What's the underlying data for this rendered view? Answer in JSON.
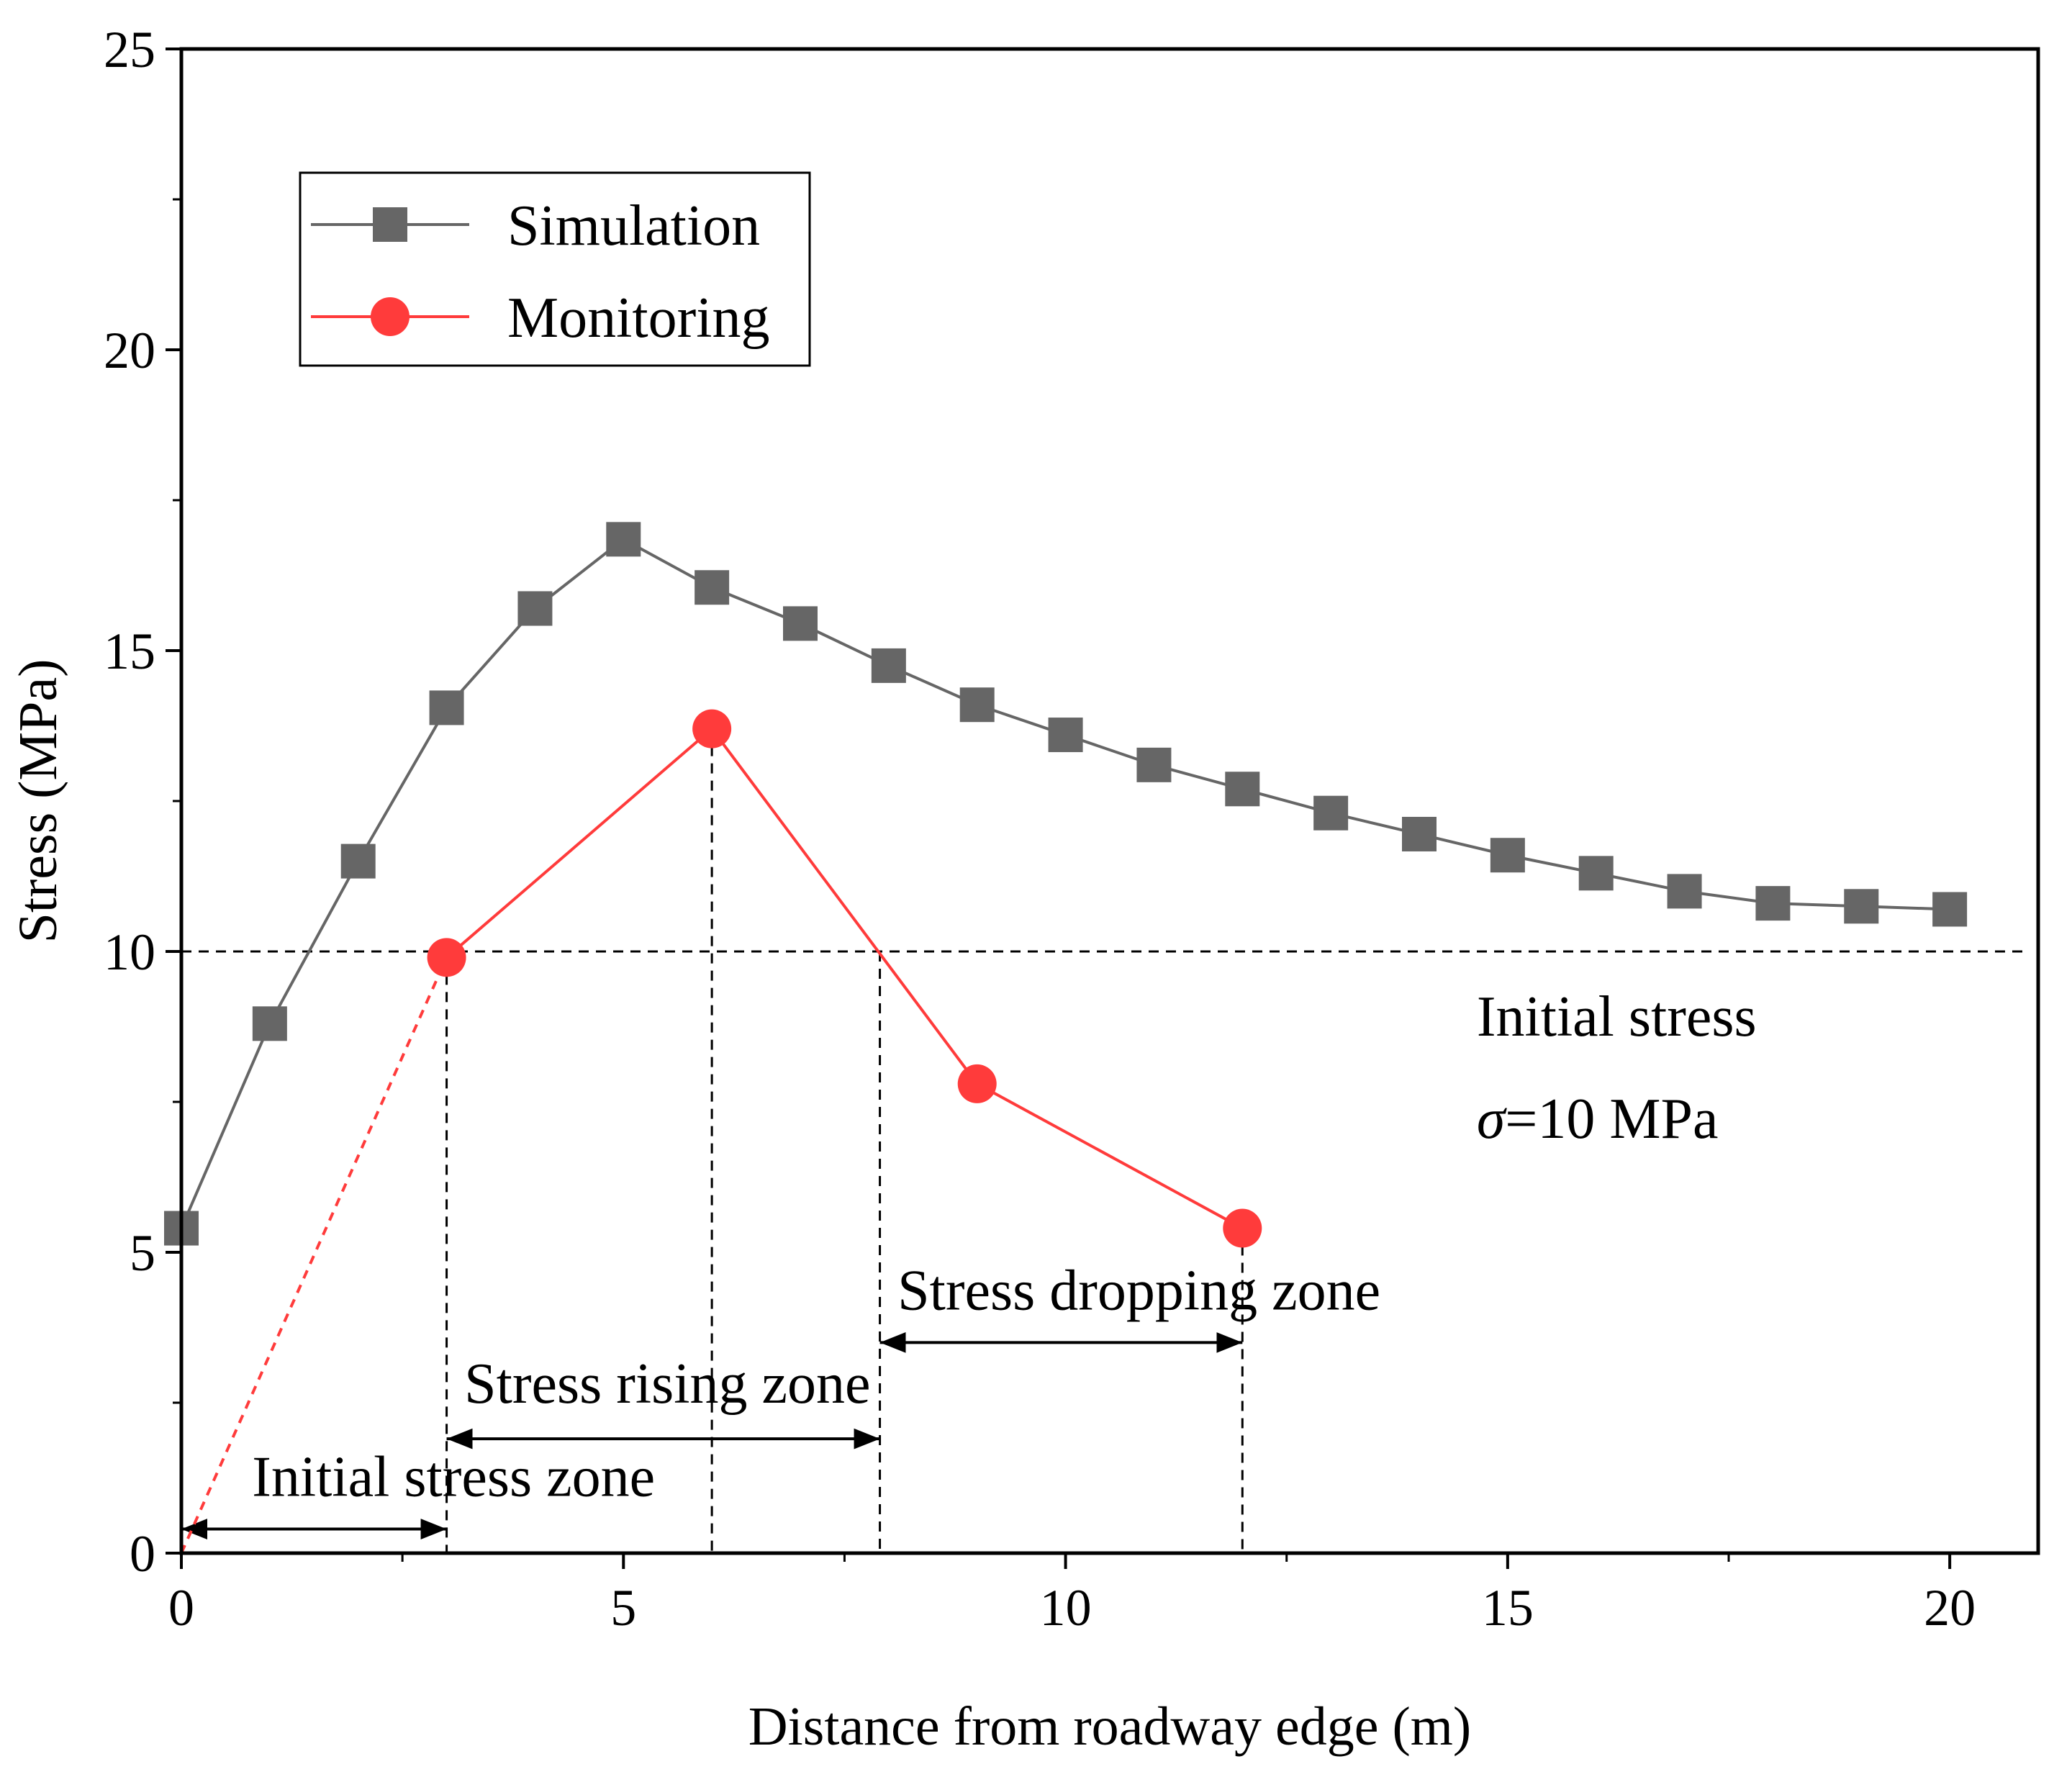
{
  "chart_data": {
    "type": "line",
    "xlabel": "Distance from roadway edge (m)",
    "ylabel": "Stress (MPa)",
    "xlim": [
      0,
      21
    ],
    "ylim": [
      0,
      25
    ],
    "xticks": [
      0,
      5,
      10,
      15,
      20
    ],
    "yticks": [
      0,
      5,
      10,
      15,
      20,
      25
    ],
    "grid": false,
    "legend_position": "top-left",
    "series": [
      {
        "name": "Simulation",
        "marker": "square",
        "color": "#666666",
        "x": [
          0,
          1,
          2,
          3,
          4,
          5,
          6,
          7,
          8,
          9,
          10,
          11,
          12,
          13,
          14,
          15,
          16,
          17,
          18,
          19,
          20
        ],
        "y": [
          5.4,
          8.8,
          11.5,
          14.05,
          15.7,
          16.85,
          16.05,
          15.45,
          14.75,
          14.1,
          13.6,
          13.1,
          12.7,
          12.3,
          11.95,
          11.6,
          11.3,
          11.0,
          10.8,
          10.75,
          10.7
        ]
      },
      {
        "name": "Monitoring",
        "marker": "circle",
        "color": "#ff3b3b",
        "x": [
          3,
          6,
          9,
          12
        ],
        "y": [
          9.9,
          13.7,
          7.8,
          5.4
        ]
      }
    ],
    "extrapolation": {
      "name": "Monitoring extrapolation",
      "style": "dashed",
      "color": "#ff3b3b",
      "x": [
        0,
        3
      ],
      "y": [
        0,
        9.9
      ]
    },
    "reference_line": {
      "y": 10,
      "style": "dashed",
      "color": "#000000"
    },
    "annotations": [
      {
        "id": "initial_stress_line1",
        "text": "Initial stress",
        "x": 14.65,
        "y": 8.6
      },
      {
        "id": "initial_stress_line2",
        "text": "σ=10 MPa",
        "x": 14.65,
        "y": 6.9
      },
      {
        "id": "stress_dropping_zone",
        "text": "Stress dropping zone",
        "x": 8.1,
        "y": 4.05
      },
      {
        "id": "stress_rising_zone",
        "text": "Stress rising zone",
        "x": 3.2,
        "y": 2.5
      },
      {
        "id": "initial_stress_zone",
        "text": "Initial stress zone",
        "x": 0.8,
        "y": 0.95
      }
    ],
    "zone_arrows": [
      {
        "x_start": 0,
        "x_end": 3,
        "y": 0.4
      },
      {
        "x_start": 3,
        "x_end": 7.9,
        "y": 1.9
      },
      {
        "x_start": 7.9,
        "x_end": 12,
        "y": 3.5
      }
    ],
    "vertical_guides": [
      {
        "x": 3,
        "y_top": 9.9
      },
      {
        "x": 6,
        "y_top": 13.7
      },
      {
        "x": 7.9,
        "y_top": 10
      },
      {
        "x": 12,
        "y_top": 5.4
      }
    ]
  }
}
